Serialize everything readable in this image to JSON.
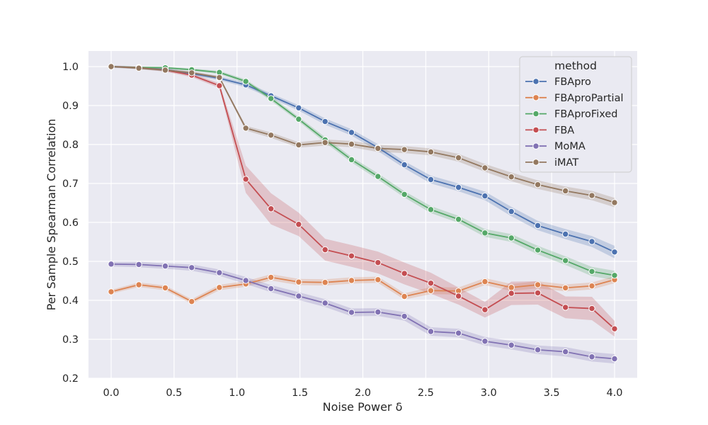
{
  "chart_data": {
    "type": "line",
    "title": "",
    "xlabel": "Noise Power δ",
    "ylabel": "Per Sample Spearman Correlation",
    "xlim": [
      -0.18,
      4.18
    ],
    "ylim": [
      0.2,
      1.04
    ],
    "xticks": [
      0.0,
      0.5,
      1.0,
      1.5,
      2.0,
      2.5,
      3.0,
      3.5,
      4.0
    ],
    "xtick_labels": [
      "0.0",
      "0.5",
      "1.0",
      "1.5",
      "2.0",
      "2.5",
      "3.0",
      "3.5",
      "4.0"
    ],
    "yticks": [
      0.2,
      0.3,
      0.4,
      0.5,
      0.6,
      0.7,
      0.8,
      0.9,
      1.0
    ],
    "ytick_labels": [
      "0.2",
      "0.3",
      "0.4",
      "0.5",
      "0.6",
      "0.7",
      "0.8",
      "0.9",
      "1.0"
    ],
    "grid": true,
    "legend": {
      "title": "method",
      "position": "top-right"
    },
    "x": [
      0.0,
      0.2,
      0.4,
      0.6,
      0.8,
      1.0,
      1.2,
      1.4,
      1.6,
      1.8,
      2.0,
      2.2,
      2.4,
      2.6,
      2.8,
      3.0,
      3.2,
      3.4,
      3.6,
      3.8,
      4.0
    ],
    "series": [
      {
        "name": "FBApro",
        "color": "#4c72b0",
        "x": [
          0.0,
          0.22,
          0.43,
          0.64,
          0.86,
          1.07,
          1.27,
          1.49,
          1.7,
          1.91,
          2.12,
          2.33,
          2.54,
          2.76,
          2.97,
          3.18,
          3.39,
          3.61,
          3.82,
          4.0
        ],
        "values": [
          1.0,
          0.997,
          0.992,
          0.982,
          0.97,
          0.953,
          0.925,
          0.894,
          0.859,
          0.831,
          0.792,
          0.748,
          0.71,
          0.69,
          0.668,
          0.628,
          0.592,
          0.57,
          0.551,
          0.524
        ],
        "ci": [
          0.003,
          0.003,
          0.004,
          0.004,
          0.005,
          0.006,
          0.006,
          0.007,
          0.008,
          0.008,
          0.009,
          0.009,
          0.01,
          0.01,
          0.011,
          0.012,
          0.012,
          0.013,
          0.014,
          0.016
        ]
      },
      {
        "name": "FBAproPartial",
        "color": "#dd8452",
        "x": [
          0.0,
          0.22,
          0.43,
          0.64,
          0.86,
          1.07,
          1.27,
          1.49,
          1.7,
          1.91,
          2.12,
          2.33,
          2.54,
          2.76,
          2.97,
          3.18,
          3.39,
          3.61,
          3.82,
          4.0
        ],
        "values": [
          0.422,
          0.44,
          0.432,
          0.397,
          0.433,
          0.442,
          0.459,
          0.447,
          0.446,
          0.451,
          0.453,
          0.41,
          0.425,
          0.424,
          0.448,
          0.433,
          0.44,
          0.432,
          0.437,
          0.453
        ],
        "ci": [
          0.005,
          0.006,
          0.006,
          0.006,
          0.007,
          0.007,
          0.008,
          0.008,
          0.008,
          0.008,
          0.008,
          0.008,
          0.009,
          0.009,
          0.009,
          0.009,
          0.009,
          0.009,
          0.009,
          0.009
        ]
      },
      {
        "name": "FBAproFixed",
        "color": "#55a868",
        "x": [
          0.0,
          0.22,
          0.43,
          0.64,
          0.86,
          1.07,
          1.27,
          1.49,
          1.7,
          1.91,
          2.12,
          2.33,
          2.54,
          2.76,
          2.97,
          3.18,
          3.39,
          3.61,
          3.82,
          4.0
        ],
        "values": [
          1.0,
          0.998,
          0.997,
          0.992,
          0.985,
          0.962,
          0.918,
          0.865,
          0.812,
          0.761,
          0.718,
          0.672,
          0.633,
          0.608,
          0.573,
          0.56,
          0.529,
          0.502,
          0.474,
          0.464
        ],
        "ci": [
          0.002,
          0.002,
          0.003,
          0.003,
          0.004,
          0.005,
          0.006,
          0.006,
          0.007,
          0.007,
          0.008,
          0.008,
          0.009,
          0.009,
          0.01,
          0.01,
          0.011,
          0.011,
          0.012,
          0.012
        ]
      },
      {
        "name": "FBA",
        "color": "#c44e52",
        "x": [
          0.0,
          0.22,
          0.43,
          0.64,
          0.86,
          1.07,
          1.27,
          1.49,
          1.7,
          1.91,
          2.12,
          2.33,
          2.54,
          2.76,
          2.97,
          3.18,
          3.39,
          3.61,
          3.82,
          4.0
        ],
        "values": [
          1.0,
          0.997,
          0.991,
          0.978,
          0.951,
          0.711,
          0.635,
          0.595,
          0.53,
          0.514,
          0.497,
          0.469,
          0.444,
          0.411,
          0.376,
          0.418,
          0.419,
          0.382,
          0.379,
          0.327
        ],
        "ci": [
          0.002,
          0.003,
          0.004,
          0.005,
          0.006,
          0.035,
          0.04,
          0.03,
          0.028,
          0.028,
          0.028,
          0.028,
          0.027,
          0.022,
          0.02,
          0.03,
          0.03,
          0.028,
          0.03,
          0.02
        ]
      },
      {
        "name": "MoMA",
        "color": "#8172b3",
        "x": [
          0.0,
          0.22,
          0.43,
          0.64,
          0.86,
          1.07,
          1.27,
          1.49,
          1.7,
          1.91,
          2.12,
          2.33,
          2.54,
          2.76,
          2.97,
          3.18,
          3.39,
          3.61,
          3.82,
          4.0
        ],
        "values": [
          0.493,
          0.492,
          0.488,
          0.484,
          0.471,
          0.451,
          0.43,
          0.411,
          0.393,
          0.369,
          0.37,
          0.359,
          0.32,
          0.316,
          0.295,
          0.285,
          0.273,
          0.268,
          0.255,
          0.25
        ],
        "ci": [
          0.006,
          0.007,
          0.007,
          0.008,
          0.008,
          0.009,
          0.009,
          0.01,
          0.01,
          0.01,
          0.01,
          0.011,
          0.011,
          0.011,
          0.011,
          0.011,
          0.011,
          0.012,
          0.012,
          0.012
        ]
      },
      {
        "name": "iMAT",
        "color": "#937860",
        "x": [
          0.0,
          0.22,
          0.43,
          0.64,
          0.86,
          1.07,
          1.27,
          1.49,
          1.7,
          1.91,
          2.12,
          2.33,
          2.54,
          2.76,
          2.97,
          3.18,
          3.39,
          3.61,
          3.82,
          4.0
        ],
        "values": [
          1.0,
          0.996,
          0.991,
          0.984,
          0.972,
          0.842,
          0.824,
          0.799,
          0.805,
          0.801,
          0.79,
          0.787,
          0.781,
          0.766,
          0.74,
          0.717,
          0.697,
          0.681,
          0.669,
          0.651
        ],
        "ci": [
          0.002,
          0.003,
          0.003,
          0.004,
          0.004,
          0.006,
          0.007,
          0.007,
          0.008,
          0.008,
          0.009,
          0.009,
          0.009,
          0.01,
          0.01,
          0.011,
          0.011,
          0.011,
          0.012,
          0.012
        ]
      }
    ]
  }
}
